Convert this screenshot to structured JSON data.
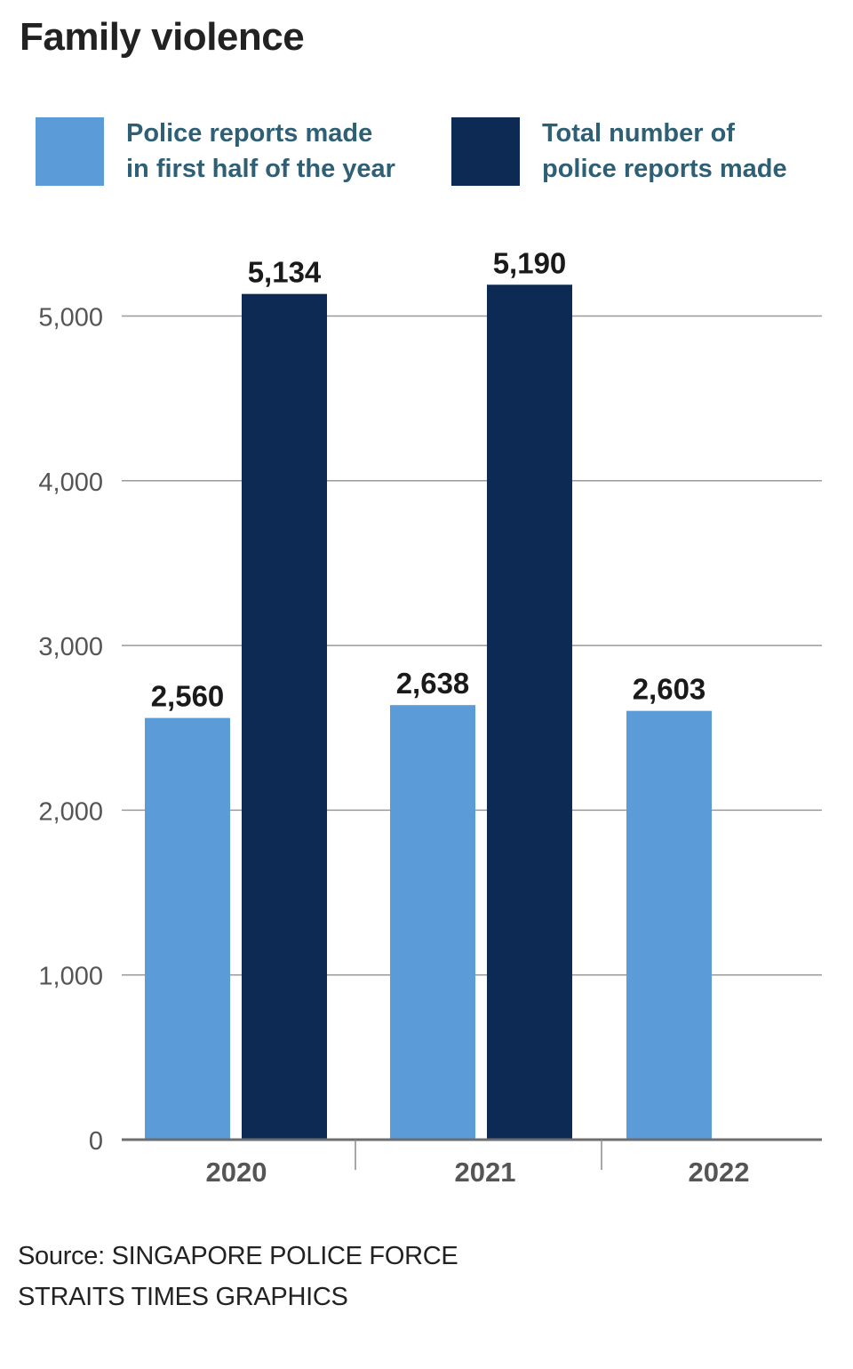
{
  "title": "Family violence",
  "legend": [
    {
      "label": "Police reports made\nin first half of the year",
      "color": "#5b9bd8"
    },
    {
      "label": "Total number of\npolice reports made",
      "color": "#0d2a55"
    }
  ],
  "chart_data": {
    "type": "bar",
    "title": "Family violence",
    "xlabel": "",
    "ylabel": "",
    "ylim": [
      0,
      5000
    ],
    "yticks": [
      "0",
      "1,000",
      "2,000",
      "3,000",
      "4,000",
      "5,000"
    ],
    "categories": [
      "2020",
      "2021",
      "2022"
    ],
    "series": [
      {
        "name": "Police reports made in first half of the year",
        "color": "#5b9bd8",
        "values": [
          2560,
          2638,
          2603
        ],
        "labels": [
          "2,560",
          "2,638",
          "2,603"
        ]
      },
      {
        "name": "Total number of police reports made",
        "color": "#0d2a55",
        "values": [
          5134,
          5190,
          null
        ],
        "labels": [
          "5,134",
          "5,190",
          null
        ]
      }
    ],
    "grid": true,
    "legend_position": "top"
  },
  "footer": {
    "source": "Source: SINGAPORE POLICE FORCE",
    "credit": "STRAITS TIMES GRAPHICS"
  }
}
